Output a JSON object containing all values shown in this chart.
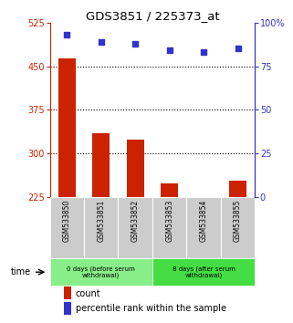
{
  "title": "GDS3851 / 225373_at",
  "samples": [
    "GSM533850",
    "GSM533851",
    "GSM533852",
    "GSM533853",
    "GSM533854",
    "GSM533855"
  ],
  "counts": [
    463,
    335,
    323,
    248,
    222,
    253
  ],
  "percentiles": [
    93,
    89,
    88,
    84,
    83,
    85
  ],
  "bar_color": "#cc2200",
  "dot_color": "#3333cc",
  "ylim_left": [
    225,
    525
  ],
  "ylim_right": [
    0,
    100
  ],
  "yticks_left": [
    225,
    300,
    375,
    450,
    525
  ],
  "yticks_right": [
    0,
    25,
    50,
    75,
    100
  ],
  "groups": [
    {
      "label": "0 days (before serum\nwithdrawal)",
      "color": "#88ee88"
    },
    {
      "label": "8 days (after serum\nwithdrawal)",
      "color": "#44dd44"
    }
  ],
  "legend_count": "count",
  "legend_pct": "percentile rank within the sample",
  "bar_bottom": 225,
  "dotted_lines": [
    300,
    375,
    450
  ],
  "sample_bg": "#cccccc",
  "bar_width": 0.5
}
